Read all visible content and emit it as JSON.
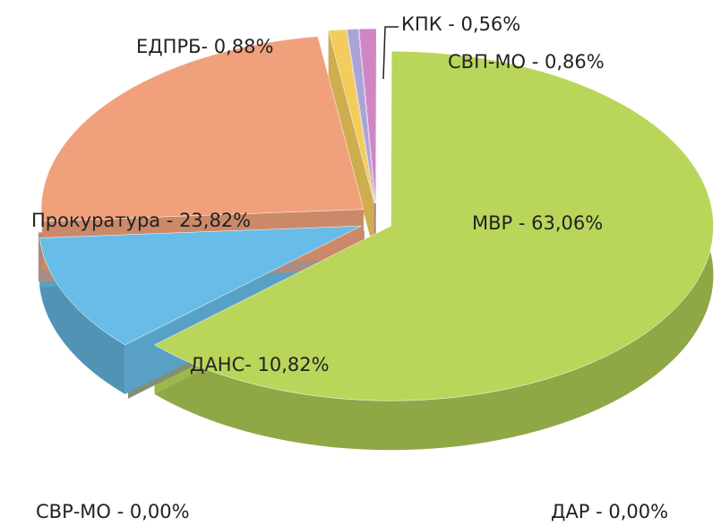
{
  "chart_data": {
    "type": "pie",
    "categories": [
      "КПК - 0,56%",
      "СВП-МО - 0,86%",
      "МВР - 63,06%",
      "ДАР - 0,00%",
      "ДАНС- 10,82%",
      "СВР-МО - 0,00%",
      "Прокуратура - 23,82%",
      "ЕДПРБ- 0,88%"
    ],
    "values": [
      0.56,
      0.86,
      63.06,
      0,
      10.82,
      0,
      23.82,
      0.88
    ],
    "colors": [
      "#a9a3d6",
      "#cf86c4",
      "#b9d65a",
      "#9aa88a",
      "#68bde8",
      "#c7a59a",
      "#f0a17c",
      "#f2cc5c"
    ]
  }
}
